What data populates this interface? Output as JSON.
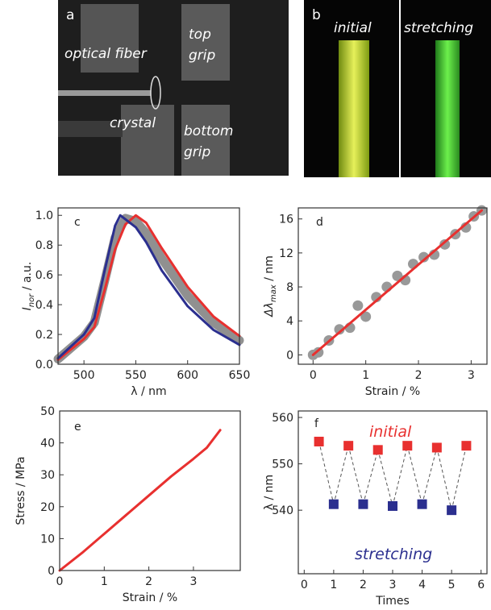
{
  "images": {
    "a": {
      "letter": "a",
      "labels": [
        "optical fiber",
        "top",
        "grip",
        "crystal",
        "bottom",
        "grip"
      ]
    },
    "b": {
      "letter": "b",
      "labels": [
        "initial",
        "stretching"
      ]
    }
  },
  "chart_data": [
    {
      "type": "line",
      "label": "c",
      "xlabel": "λ / nm",
      "ylabel": {
        "main": "I",
        "sub": "nor",
        "rest": " / a.u."
      },
      "xlim": [
        475,
        650
      ],
      "xticks": [
        500,
        550,
        600,
        650
      ],
      "ylim": [
        0,
        1.05
      ],
      "yticks": [
        {
          "value": 0,
          "label": "0.0"
        },
        {
          "value": 0.2,
          "label": "0.2"
        },
        {
          "value": 0.4,
          "label": "0.4"
        },
        {
          "value": 0.6,
          "label": "0.6"
        },
        {
          "value": 0.8,
          "label": "0.8"
        },
        {
          "value": 1,
          "label": "1.0"
        }
      ],
      "series": [
        {
          "color": "#909090",
          "mark": "band",
          "x": [
            475,
            500,
            510,
            520,
            530,
            540,
            550,
            560,
            575,
            600,
            625,
            650
          ],
          "values": [
            0.035,
            0.185,
            0.28,
            0.56,
            0.85,
            0.98,
            0.96,
            0.88,
            0.71,
            0.46,
            0.28,
            0.16
          ]
        },
        {
          "color": "#e8302f",
          "mark": "line",
          "x": [
            475,
            500,
            510,
            520,
            530,
            540,
            550,
            560,
            575,
            600,
            625,
            650
          ],
          "values": [
            0.03,
            0.17,
            0.25,
            0.5,
            0.77,
            0.94,
            1.0,
            0.95,
            0.78,
            0.52,
            0.32,
            0.19
          ]
        },
        {
          "color": "#2b2f8f",
          "mark": "line",
          "x": [
            475,
            500,
            510,
            520,
            530,
            535,
            550,
            560,
            575,
            600,
            625,
            650
          ],
          "values": [
            0.04,
            0.2,
            0.31,
            0.63,
            0.93,
            1.0,
            0.92,
            0.82,
            0.63,
            0.39,
            0.23,
            0.13
          ]
        }
      ]
    },
    {
      "type": "scatter",
      "label": "d",
      "xlabel": "Strain / %",
      "ylabel": {
        "main": "Δλ",
        "sub": "max",
        "rest": " / nm"
      },
      "xlim": [
        -0.28,
        3.3
      ],
      "xticks": [
        0,
        1,
        2,
        3
      ],
      "ylim": [
        -1.1,
        17.3
      ],
      "yticks": [
        0,
        4,
        8,
        12,
        16
      ],
      "series": [
        {
          "color": "#999999",
          "mark": "circle",
          "x": [
            0,
            0.1,
            0.3,
            0.5,
            0.7,
            0.85,
            1.0,
            1.2,
            1.4,
            1.6,
            1.75,
            1.9,
            2.1,
            2.3,
            2.5,
            2.7,
            2.9,
            3.05,
            3.2
          ],
          "values": [
            0,
            0.3,
            1.7,
            3.0,
            3.2,
            5.8,
            4.5,
            6.8,
            8.0,
            9.3,
            8.8,
            10.7,
            11.5,
            11.8,
            13.0,
            14.2,
            15.0,
            16.3,
            17.0
          ]
        },
        {
          "color": "#e8302f",
          "mark": "line",
          "x": [
            0,
            3.2
          ],
          "values": [
            0,
            17.0
          ]
        }
      ]
    },
    {
      "type": "line",
      "label": "e",
      "xlabel": "Strain / %",
      "ylabel": "Stress / MPa",
      "xlim": [
        0,
        4.05
      ],
      "xticks": [
        0,
        1,
        2,
        3
      ],
      "ylim": [
        0,
        50
      ],
      "yticks": [
        0,
        10,
        20,
        30,
        40,
        50
      ],
      "series": [
        {
          "color": "#e8302f",
          "mark": "line",
          "x": [
            0,
            0.5,
            1,
            1.5,
            2,
            2.5,
            3,
            3.3,
            3.6
          ],
          "values": [
            0,
            5.5,
            11.5,
            17.5,
            23.5,
            29.5,
            35,
            38.5,
            44
          ]
        }
      ]
    },
    {
      "type": "scatter",
      "label": "f",
      "connect": true,
      "xlabel": "Times",
      "ylabel": "λ / nm",
      "xlim": [
        -0.2,
        6.2
      ],
      "xticks": [
        0,
        1,
        2,
        3,
        4,
        5,
        6
      ],
      "ylim": [
        526.3,
        561.4
      ],
      "yticks": [
        540,
        550,
        560
      ],
      "annotations": [
        {
          "text": "initial",
          "color": "#e8302f"
        },
        {
          "text": "stretching",
          "color": "#2b2f8f"
        }
      ],
      "series": [
        {
          "color": "#e8302f",
          "mark": "square",
          "x": [
            0.5,
            1.5,
            2.5,
            3.5,
            4.5,
            5.5
          ],
          "values": [
            554.8,
            553.9,
            553.0,
            553.9,
            553.5,
            553.9
          ]
        },
        {
          "color": "#2b2f8f",
          "mark": "square",
          "x": [
            1,
            2,
            3,
            4,
            5
          ],
          "values": [
            541.3,
            541.3,
            540.9,
            541.3,
            540.0
          ]
        }
      ]
    }
  ]
}
